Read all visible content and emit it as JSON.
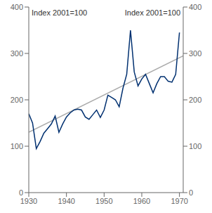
{
  "chart_data": {
    "type": "line",
    "ylabel": "Index 2001=100",
    "y2label": "Index 2001=100",
    "xlim": [
      1930,
      1971
    ],
    "xticks": [
      1930,
      1940,
      1950,
      1960,
      1970
    ],
    "ylim": [
      0,
      400
    ],
    "yticks": [
      0,
      100,
      200,
      300,
      400
    ],
    "y2lim": [
      0,
      400
    ],
    "y2ticks": [
      0,
      100,
      200,
      300,
      400
    ],
    "grid": false,
    "series": [
      {
        "color": "#aaaaaa",
        "x": [
          1930,
          1971
        ],
        "values": [
          130,
          295
        ]
      },
      {
        "color": "#003070",
        "x": [
          1930,
          1931,
          1932,
          1933,
          1934,
          1935,
          1936,
          1937,
          1938,
          1939,
          1940,
          1941,
          1942,
          1943,
          1944,
          1945,
          1946,
          1947,
          1948,
          1949,
          1950,
          1951,
          1952,
          1953,
          1954,
          1955,
          1956,
          1957,
          1958,
          1959,
          1960,
          1961,
          1962,
          1963,
          1964,
          1965,
          1966,
          1967,
          1968,
          1969,
          1970
        ],
        "values": [
          170,
          150,
          95,
          110,
          128,
          138,
          148,
          165,
          130,
          148,
          163,
          172,
          178,
          180,
          178,
          163,
          158,
          168,
          178,
          162,
          178,
          210,
          205,
          200,
          185,
          225,
          255,
          350,
          260,
          230,
          245,
          255,
          235,
          215,
          235,
          250,
          250,
          240,
          238,
          255,
          345
        ]
      }
    ]
  }
}
